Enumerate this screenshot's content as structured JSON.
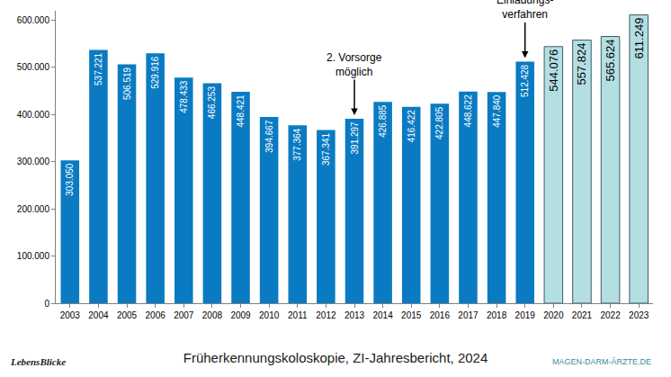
{
  "chart_data": {
    "type": "bar",
    "title": "Früherkennungskoloskopie, ZI-Jahresbericht, 2024",
    "categories": [
      "2003",
      "2004",
      "2005",
      "2006",
      "2007",
      "2008",
      "2009",
      "2010",
      "2011",
      "2012",
      "2013",
      "2014",
      "2015",
      "2016",
      "2017",
      "2018",
      "2019",
      "2020",
      "2021",
      "2022",
      "2023"
    ],
    "values": [
      303050,
      537221,
      506519,
      529916,
      478433,
      466253,
      448421,
      394667,
      377364,
      367341,
      391297,
      426885,
      416422,
      422805,
      448622,
      447840,
      512428,
      544076,
      557824,
      565624,
      611249
    ],
    "value_labels": [
      "303.050",
      "537.221",
      "506.519",
      "529.916",
      "478.433",
      "466.253",
      "448.421",
      "394.667",
      "377.364",
      "367.341",
      "391.297",
      "426.885",
      "416.422",
      "422.805",
      "448.622",
      "447.840",
      "512.428",
      "544.076",
      "557.824",
      "565.624",
      "611.249"
    ],
    "colors": [
      "#0a7bc2",
      "#0a7bc2",
      "#0a7bc2",
      "#0a7bc2",
      "#0a7bc2",
      "#0a7bc2",
      "#0a7bc2",
      "#0a7bc2",
      "#0a7bc2",
      "#0a7bc2",
      "#0a7bc2",
      "#0a7bc2",
      "#0a7bc2",
      "#0a7bc2",
      "#0a7bc2",
      "#0a7bc2",
      "#0a7bc2",
      "#b3dfe3",
      "#b3dfe3",
      "#b3dfe3",
      "#b3dfe3"
    ],
    "data_labels": true,
    "grid": false,
    "ylim": [
      0,
      620000
    ],
    "yticks": [
      0,
      {
        "value": 100000,
        "label": "100.000"
      },
      {
        "value": 200000,
        "label": "200.000"
      },
      {
        "value": 300000,
        "label": "300.000"
      },
      {
        "value": 400000,
        "label": "400.000"
      },
      {
        "value": 500000,
        "label": "500.000"
      },
      {
        "value": 600000,
        "label": "600.000"
      }
    ],
    "annotations": [
      {
        "category": "2013",
        "lines": [
          "2. Vorsorge",
          "möglich"
        ]
      },
      {
        "category": "2019",
        "lines": [
          "Einladungs-",
          "verfahren"
        ]
      }
    ],
    "footer_texts": [
      "LebensBlicke",
      "MAGEN-DARM-ÄRZTE.DE"
    ]
  }
}
